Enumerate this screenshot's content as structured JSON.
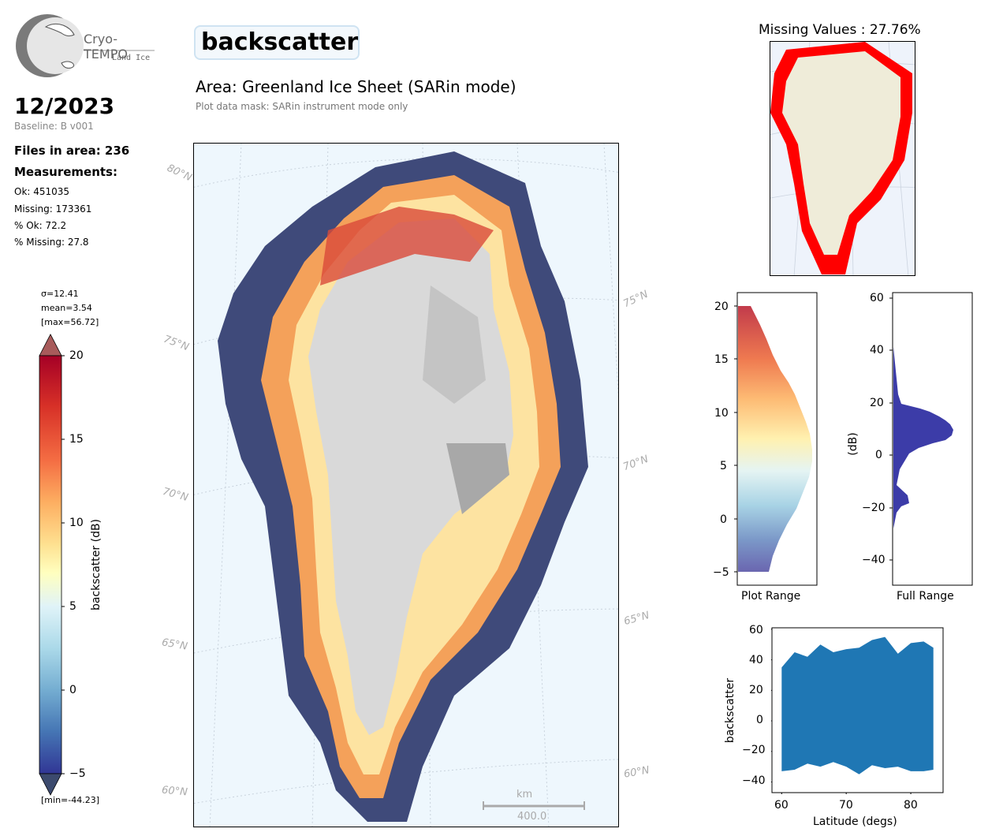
{
  "logo": {
    "name": "Cryo-TEMPO",
    "subtitle": "Land Ice"
  },
  "parameter": "backscatter",
  "date": "12/2023",
  "baseline": "Baseline: B v001",
  "files_in_area": "Files in area: 236",
  "measurements_title": "Measurements:",
  "stats": {
    "ok": "Ok: 451035",
    "missing": "Missing: 173361",
    "pct_ok": "% Ok: 72.2",
    "pct_missing": "% Missing: 27.8"
  },
  "area_title": "Area: Greenland Ice Sheet (SARin mode)",
  "mask_note": "Plot data mask: SARin instrument mode only",
  "colorbar": {
    "sigma": "σ=12.41",
    "mean": "mean=3.54",
    "max": "[max=56.72]",
    "min": "[min=-44.23]",
    "label": "backscatter (dB)",
    "ticks": [
      "20",
      "15",
      "10",
      "5",
      "0",
      "−5"
    ],
    "colors": [
      "#a50026",
      "#d73027",
      "#f46d43",
      "#fdae61",
      "#fee090",
      "#ffffbf",
      "#e0f3f8",
      "#abd9e9",
      "#74add1",
      "#4575b4",
      "#313695"
    ]
  },
  "map": {
    "lat_labels": [
      "80°N",
      "75°N",
      "70°N",
      "65°N",
      "60°N",
      "75°N",
      "70°N",
      "65°N",
      "60°N"
    ],
    "scalebar_unit": "km",
    "scalebar_value": "400.0",
    "ocean_color": "#eef7fd",
    "land_color": "#d9d9d9"
  },
  "missing_map": {
    "title": "Missing Values : 27.76%",
    "land_color": "#efecd9",
    "missing_color": "#ff0000"
  },
  "hist_plot_range": {
    "xlabel": "Plot Range",
    "yticks": [
      "20",
      "15",
      "10",
      "5",
      "0",
      "−5"
    ]
  },
  "hist_full_range": {
    "xlabel": "Full Range",
    "ylabel": "(dB)",
    "yticks": [
      "60",
      "40",
      "20",
      "0",
      "−20",
      "−40"
    ],
    "bar_color": "#3c3ca8"
  },
  "chart_data": {
    "type": "scatter",
    "xlabel": "Latitude (degs)",
    "ylabel": "backscatter",
    "xticks": [
      "60",
      "70",
      "80"
    ],
    "yticks": [
      "60",
      "40",
      "20",
      "0",
      "−20",
      "−40"
    ],
    "xlim": [
      58.5,
      85
    ],
    "ylim": [
      -47,
      61
    ],
    "point_color": "#1f77b4",
    "x": [
      60,
      62,
      64,
      66,
      68,
      70,
      72,
      74,
      76,
      78,
      80,
      82,
      83.5
    ],
    "y_upper": [
      35,
      45,
      42,
      50,
      45,
      47,
      48,
      53,
      55,
      44,
      51,
      52,
      48
    ],
    "y_lower": [
      -33,
      -32,
      -28,
      -30,
      -27,
      -30,
      -35,
      -29,
      -31,
      -30,
      -33,
      -33,
      -32
    ]
  }
}
